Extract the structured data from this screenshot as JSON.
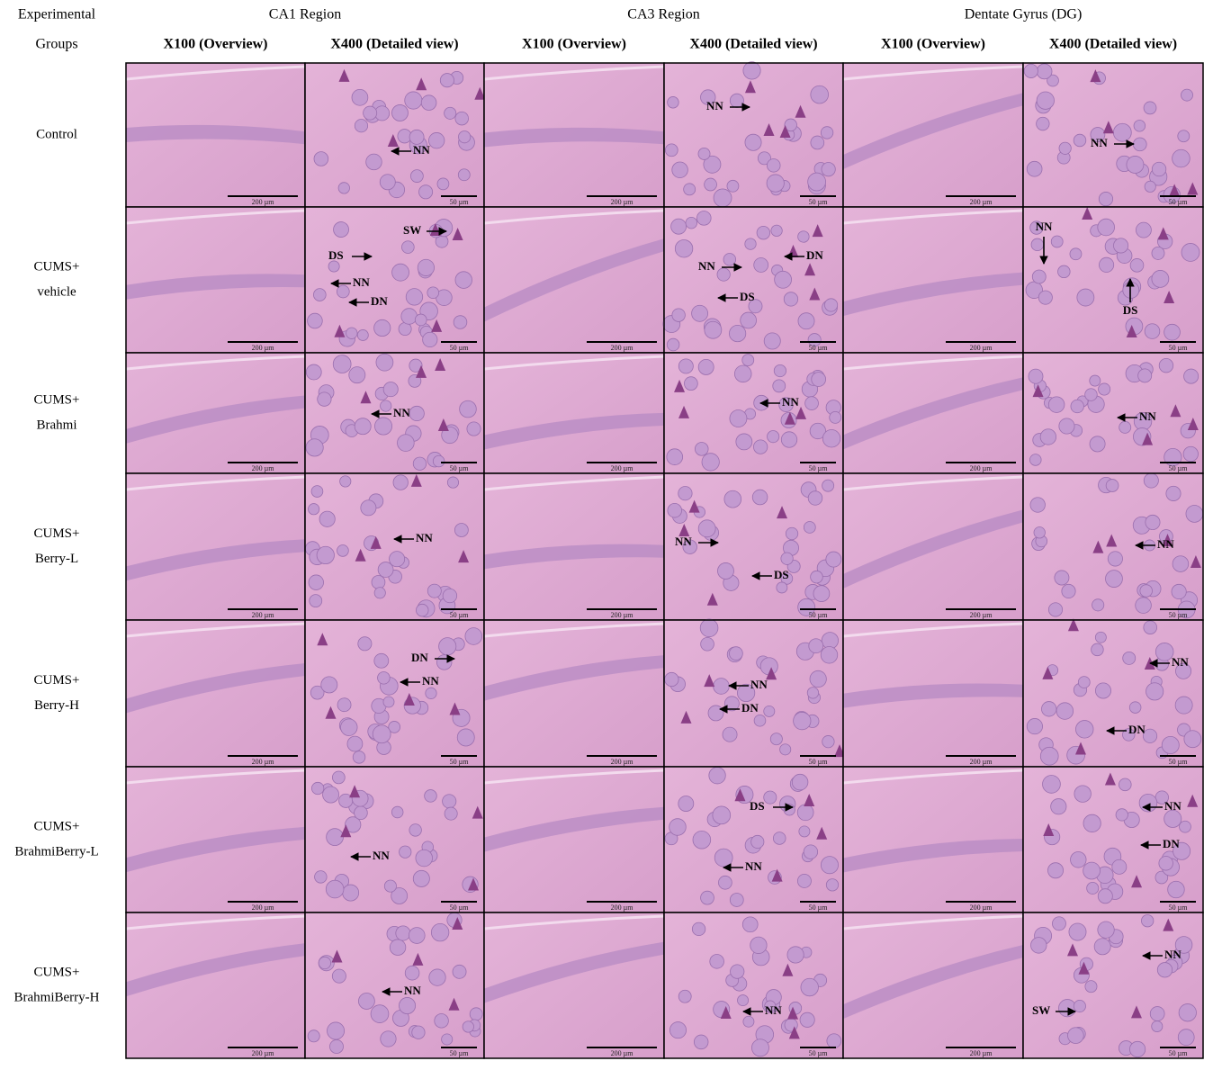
{
  "header": {
    "corner": [
      "Experimental",
      "Groups"
    ],
    "regions": [
      "CA1 Region",
      "CA3 Region",
      "Dentate Gyrus (DG)"
    ],
    "magnifications": [
      "X100 (Overview)",
      "X400 (Detailed view)",
      "X100 (Overview)",
      "X400 (Detailed view)",
      "X100 (Overview)",
      "X400 (Detailed view)"
    ]
  },
  "rows": [
    {
      "label": [
        "Control"
      ],
      "panels": [
        {
          "scale": "200 µm",
          "annotations": []
        },
        {
          "scale": "50 µm",
          "annotations": [
            "NN"
          ]
        },
        {
          "scale": "200 µm",
          "annotations": []
        },
        {
          "scale": "50 µm",
          "annotations": [
            "NN"
          ]
        },
        {
          "scale": "200 µm",
          "annotations": []
        },
        {
          "scale": "50 µm",
          "annotations": [
            "NN"
          ]
        }
      ]
    },
    {
      "label": [
        "CUMS+",
        "vehicle"
      ],
      "panels": [
        {
          "scale": "200 µm",
          "annotations": []
        },
        {
          "scale": "50 µm",
          "annotations": [
            "SW",
            "DS",
            "NN",
            "DN"
          ]
        },
        {
          "scale": "200 µm",
          "annotations": []
        },
        {
          "scale": "50 µm",
          "annotations": [
            "NN",
            "DN",
            "DS"
          ]
        },
        {
          "scale": "200 µm",
          "annotations": []
        },
        {
          "scale": "50 µm",
          "annotations": [
            "NN",
            "DS"
          ]
        }
      ]
    },
    {
      "label": [
        "CUMS+",
        "Brahmi"
      ],
      "panels": [
        {
          "scale": "200 µm",
          "annotations": []
        },
        {
          "scale": "50 µm",
          "annotations": [
            "NN"
          ]
        },
        {
          "scale": "200 µm",
          "annotations": []
        },
        {
          "scale": "50 µm",
          "annotations": [
            "NN"
          ]
        },
        {
          "scale": "200 µm",
          "annotations": []
        },
        {
          "scale": "50 µm",
          "annotations": [
            "NN"
          ]
        }
      ]
    },
    {
      "label": [
        "CUMS+",
        "Berry-L"
      ],
      "panels": [
        {
          "scale": "200 µm",
          "annotations": []
        },
        {
          "scale": "50 µm",
          "annotations": [
            "NN"
          ]
        },
        {
          "scale": "200 µm",
          "annotations": []
        },
        {
          "scale": "50 µm",
          "annotations": [
            "NN",
            "DS"
          ]
        },
        {
          "scale": "200 µm",
          "annotations": []
        },
        {
          "scale": "50 µm",
          "annotations": [
            "NN"
          ]
        }
      ]
    },
    {
      "label": [
        "CUMS+",
        "Berry-H"
      ],
      "panels": [
        {
          "scale": "200 µm",
          "annotations": []
        },
        {
          "scale": "50 µm",
          "annotations": [
            "DN",
            "NN"
          ]
        },
        {
          "scale": "200 µm",
          "annotations": []
        },
        {
          "scale": "50 µm",
          "annotations": [
            "NN",
            "DN"
          ]
        },
        {
          "scale": "200 µm",
          "annotations": []
        },
        {
          "scale": "50 µm",
          "annotations": [
            "NN",
            "DN"
          ]
        }
      ]
    },
    {
      "label": [
        "CUMS+",
        "BrahmiBerry-L"
      ],
      "panels": [
        {
          "scale": "200 µm",
          "annotations": []
        },
        {
          "scale": "50 µm",
          "annotations": [
            "NN"
          ]
        },
        {
          "scale": "200 µm",
          "annotations": []
        },
        {
          "scale": "50 µm",
          "annotations": [
            "DS",
            "NN"
          ]
        },
        {
          "scale": "200 µm",
          "annotations": []
        },
        {
          "scale": "50 µm",
          "annotations": [
            "NN",
            "DN"
          ]
        }
      ]
    },
    {
      "label": [
        "CUMS+",
        "BrahmiBerry-H"
      ],
      "panels": [
        {
          "scale": "200 µm",
          "annotations": []
        },
        {
          "scale": "50 µm",
          "annotations": [
            "NN"
          ]
        },
        {
          "scale": "200 µm",
          "annotations": []
        },
        {
          "scale": "50 µm",
          "annotations": [
            "NN"
          ]
        },
        {
          "scale": "200 µm",
          "annotations": []
        },
        {
          "scale": "50 µm",
          "annotations": [
            "NN",
            "SW"
          ]
        }
      ]
    }
  ]
}
